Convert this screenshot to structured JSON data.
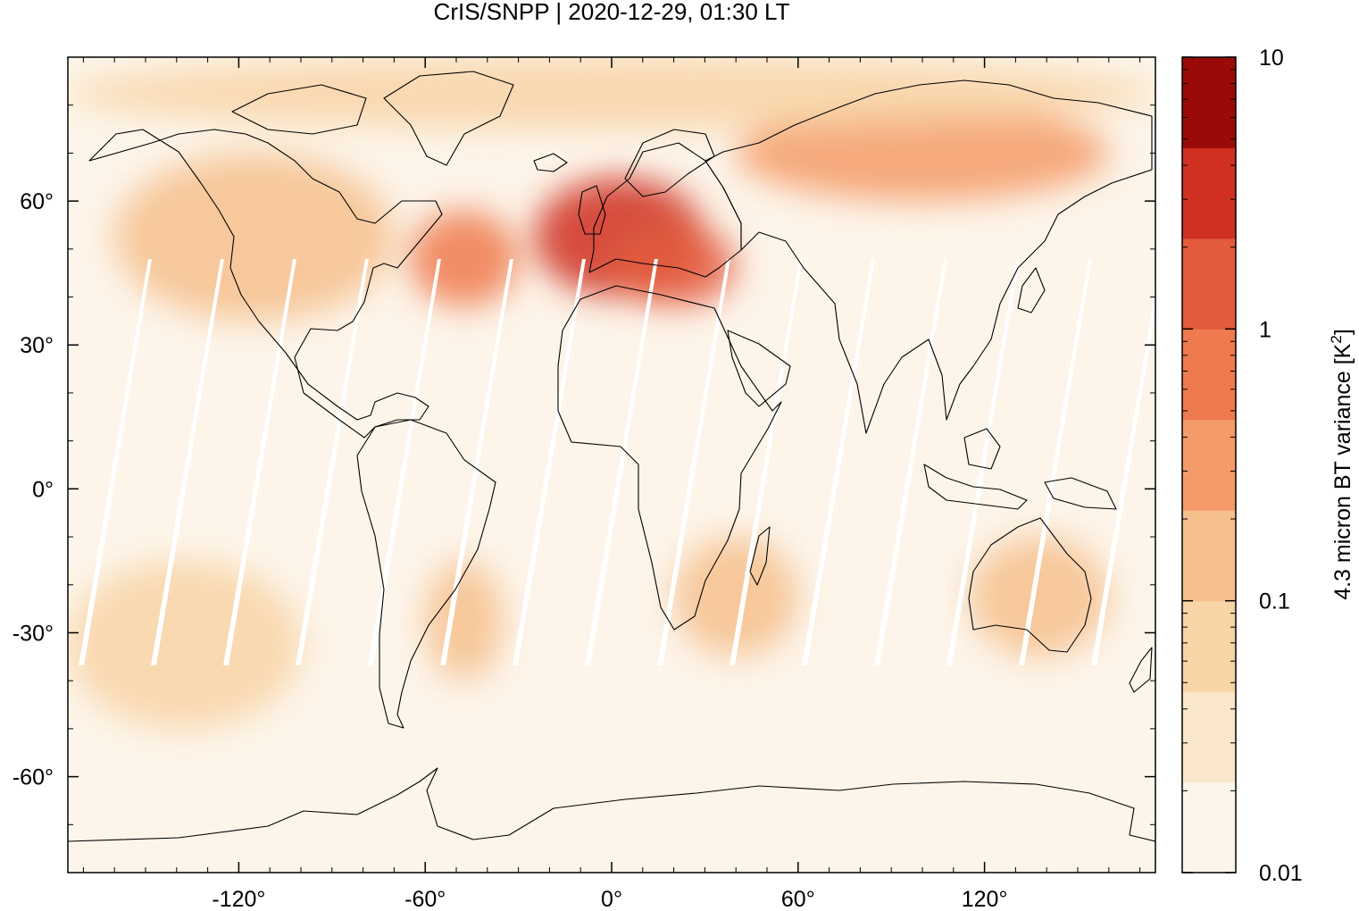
{
  "title": "CrIS/SNPP | 2020-12-29, 01:30 LT",
  "map": {
    "projection": "plate carrée",
    "lon_range": [
      -175,
      175
    ],
    "lat_range": [
      -80,
      90
    ],
    "x_ticks": [
      {
        "value": -120,
        "label": "-120°"
      },
      {
        "value": -60,
        "label": "-60°"
      },
      {
        "value": 0,
        "label": "0°"
      },
      {
        "value": 60,
        "label": "60°"
      },
      {
        "value": 120,
        "label": "120°"
      }
    ],
    "y_ticks": [
      {
        "value": 60,
        "label": "60°"
      },
      {
        "value": 30,
        "label": "30°"
      },
      {
        "value": 0,
        "label": "0°"
      },
      {
        "value": -30,
        "label": "-30°"
      },
      {
        "value": -60,
        "label": "-60°"
      }
    ],
    "background_color": "#fdf5ea",
    "coastline_color": "#000000",
    "gap_color": "#ffffff",
    "regions": [
      {
        "name": "North Atlantic / Europe",
        "lon": [
          -25,
          30
        ],
        "lat": [
          40,
          65
        ],
        "level": 4.0
      },
      {
        "name": "Central Europe",
        "lon": [
          0,
          40
        ],
        "lat": [
          38,
          55
        ],
        "level": 1.5
      },
      {
        "name": "Northwest Atlantic",
        "lon": [
          -65,
          -30
        ],
        "lat": [
          38,
          58
        ],
        "level": 0.8
      },
      {
        "name": "North America",
        "lon": [
          -160,
          -70
        ],
        "lat": [
          35,
          70
        ],
        "level": 0.12
      },
      {
        "name": "Siberia",
        "lon": [
          40,
          160
        ],
        "lat": [
          60,
          80
        ],
        "level": 0.25
      },
      {
        "name": "Arctic",
        "lon": [
          -175,
          175
        ],
        "lat": [
          75,
          90
        ],
        "level": 0.08
      },
      {
        "name": "South America",
        "lon": [
          -60,
          -35
        ],
        "lat": [
          -40,
          -15
        ],
        "level": 0.15
      },
      {
        "name": "Southern Africa",
        "lon": [
          20,
          60
        ],
        "lat": [
          -35,
          -10
        ],
        "level": 0.15
      },
      {
        "name": "Australia",
        "lon": [
          115,
          160
        ],
        "lat": [
          -35,
          -10
        ],
        "level": 0.1
      },
      {
        "name": "South Pacific",
        "lon": [
          -175,
          -100
        ],
        "lat": [
          -50,
          -15
        ],
        "level": 0.05
      }
    ]
  },
  "colorbar": {
    "label": "4.3 micron BT variance [K",
    "label_sup": "2",
    "label_end": "]",
    "scale": "log",
    "range": [
      0.01,
      10
    ],
    "ticks": [
      {
        "value": 10,
        "label": "10"
      },
      {
        "value": 1,
        "label": "1"
      },
      {
        "value": 0.1,
        "label": "0.1"
      },
      {
        "value": 0.01,
        "label": "0.01"
      }
    ],
    "colors": [
      "#fdf5ea",
      "#fae6ca",
      "#f8d4a6",
      "#f6c08d",
      "#f49b69",
      "#ef7a4e",
      "#e45a3c",
      "#cf3022",
      "#9a0a06"
    ]
  }
}
